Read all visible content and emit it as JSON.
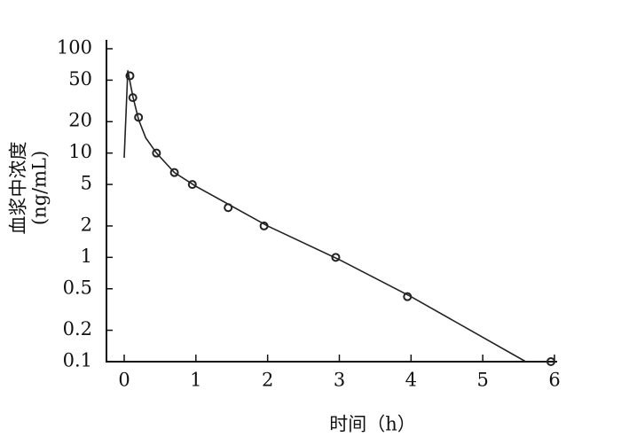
{
  "chart_data": {
    "type": "line",
    "ylabel": [
      "血浆中浓度",
      "(ng/mL)"
    ],
    "xlabel": "时间（h）",
    "xlim": [
      0,
      6
    ],
    "xticks": [
      0,
      1,
      2,
      3,
      4,
      5,
      6
    ],
    "ylim": [
      0.1,
      100
    ],
    "yticks": [
      100,
      50,
      20,
      10,
      5,
      2,
      1,
      0.5,
      0.2,
      0.1
    ],
    "ylog": true,
    "color": "#222222",
    "series": [
      {
        "style": "markers",
        "x": [
          0.08,
          0.12,
          0.2,
          0.45,
          0.7,
          0.95,
          1.45,
          1.95,
          2.95,
          3.95,
          5.95
        ],
        "values": [
          55,
          34,
          22,
          10,
          6.5,
          5,
          3,
          2,
          1,
          0.42,
          0.1
        ]
      },
      {
        "style": "line",
        "x": [
          0,
          0.05,
          0.12,
          0.2,
          0.3,
          0.45,
          0.7,
          1,
          2,
          3,
          4,
          5.6
        ],
        "values": [
          9,
          62,
          35,
          21,
          14,
          10,
          6.5,
          4.8,
          2,
          0.95,
          0.42,
          0.1
        ]
      }
    ]
  }
}
